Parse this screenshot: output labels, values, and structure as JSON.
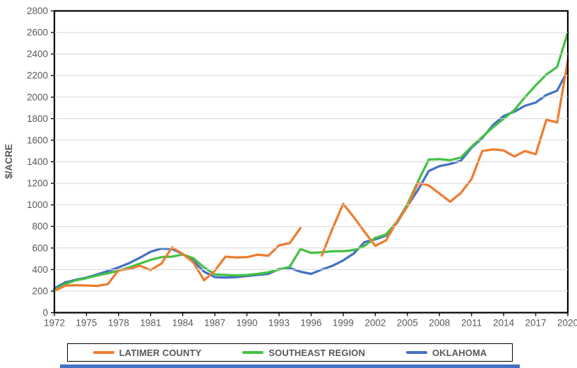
{
  "chart_data": {
    "type": "line",
    "title": "",
    "xlabel": "",
    "ylabel": "$/ACRE",
    "ylim": [
      0,
      2800
    ],
    "ytick_step": 200,
    "grid": true,
    "legend_position": "bottom",
    "x": [
      1972,
      1973,
      1974,
      1975,
      1976,
      1977,
      1978,
      1979,
      1980,
      1981,
      1982,
      1983,
      1984,
      1985,
      1986,
      1987,
      1988,
      1989,
      1990,
      1991,
      1992,
      1993,
      1994,
      1995,
      1996,
      1997,
      1998,
      1999,
      2000,
      2001,
      2002,
      2003,
      2004,
      2005,
      2006,
      2007,
      2008,
      2009,
      2010,
      2011,
      2012,
      2013,
      2014,
      2015,
      2016,
      2017,
      2018,
      2019,
      2020
    ],
    "xtick_labels": [
      1972,
      1975,
      1978,
      1981,
      1984,
      1987,
      1990,
      1993,
      1996,
      1999,
      2002,
      2005,
      2008,
      2011,
      2014,
      2017,
      2020
    ],
    "series": [
      {
        "name": "LATIMER COUNTY",
        "color": "#ED7D31",
        "values": [
          200,
          250,
          255,
          252,
          248,
          265,
          395,
          405,
          435,
          395,
          455,
          605,
          545,
          465,
          300,
          390,
          520,
          512,
          515,
          538,
          528,
          625,
          645,
          785,
          null,
          530,
          780,
          1010,
          885,
          750,
          620,
          670,
          840,
          985,
          1205,
          1180,
          1105,
          1030,
          1110,
          1240,
          1500,
          1515,
          1505,
          1450,
          1500,
          1470,
          1790,
          1765,
          2340
        ]
      },
      {
        "name": "SOUTHEAST REGION",
        "color": "#44C144",
        "values": [
          210,
          265,
          300,
          320,
          345,
          365,
          390,
          420,
          455,
          490,
          515,
          520,
          540,
          505,
          420,
          355,
          350,
          345,
          350,
          360,
          375,
          400,
          425,
          590,
          555,
          560,
          570,
          570,
          580,
          620,
          695,
          725,
          840,
          1005,
          1220,
          1420,
          1425,
          1415,
          1440,
          1540,
          1630,
          1720,
          1800,
          1880,
          2000,
          2110,
          2210,
          2280,
          2600
        ]
      },
      {
        "name": "OKLAHOMA",
        "color": "#4472C4",
        "values": [
          225,
          280,
          305,
          325,
          355,
          385,
          420,
          460,
          510,
          565,
          595,
          590,
          545,
          480,
          380,
          330,
          325,
          330,
          340,
          350,
          360,
          405,
          415,
          380,
          360,
          400,
          435,
          485,
          550,
          655,
          680,
          715,
          830,
          990,
          1140,
          1315,
          1360,
          1380,
          1410,
          1530,
          1620,
          1740,
          1825,
          1865,
          1920,
          1950,
          2020,
          2060,
          2250
        ]
      }
    ],
    "colors": {
      "axis_text": "#595959",
      "gridline": "#D6D6D6",
      "axis_line": "#000000",
      "bottom_bar": "#4472C4"
    }
  }
}
